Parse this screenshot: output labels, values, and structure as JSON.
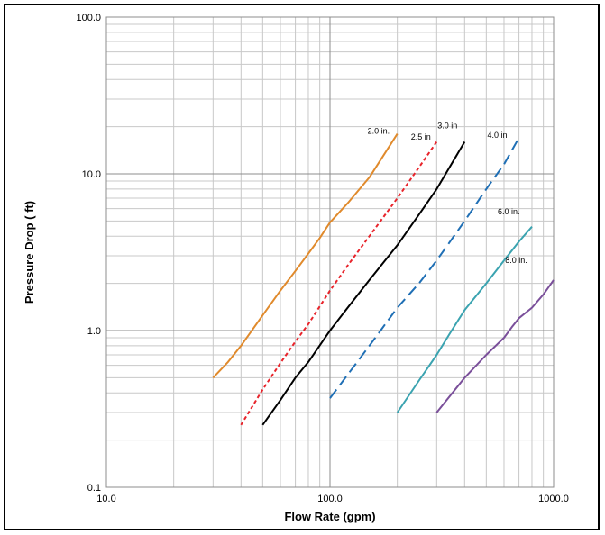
{
  "chart_data": {
    "type": "line",
    "title": "",
    "xlabel": "Flow Rate (gpm)",
    "ylabel": "Pressure Drop ( ft)",
    "xscale": "log",
    "yscale": "log",
    "xlim": [
      10,
      1000
    ],
    "ylim": [
      0.1,
      100
    ],
    "grid": true,
    "x_tick_labels": [
      "10.0",
      "100.0",
      "1000.0"
    ],
    "y_tick_labels": [
      "0.1",
      "1.0",
      "10.0",
      "100.0"
    ],
    "series": [
      {
        "name": "2.0 in.",
        "color": "#e08a2c",
        "dash": "solid",
        "x": [
          30,
          35,
          40,
          50,
          60,
          70,
          80,
          90,
          100,
          120,
          150,
          200
        ],
        "y": [
          0.5,
          0.63,
          0.8,
          1.25,
          1.8,
          2.4,
          3.1,
          3.9,
          4.9,
          6.5,
          9.5,
          18
        ]
      },
      {
        "name": "2.5 in",
        "color": "#e8242b",
        "dash": "short",
        "x": [
          40,
          50,
          60,
          70,
          80,
          100,
          120,
          150,
          200,
          250,
          300
        ],
        "y": [
          0.25,
          0.42,
          0.62,
          0.85,
          1.1,
          1.8,
          2.6,
          4.0,
          7.0,
          11,
          16
        ]
      },
      {
        "name": "3.0 in",
        "color": "#000000",
        "dash": "solid",
        "x": [
          50,
          60,
          70,
          80,
          100,
          120,
          150,
          200,
          250,
          300,
          400
        ],
        "y": [
          0.25,
          0.36,
          0.5,
          0.63,
          1.0,
          1.4,
          2.1,
          3.5,
          5.5,
          8.0,
          16
        ]
      },
      {
        "name": "4.0 in",
        "color": "#1f6fb5",
        "dash": "long",
        "x": [
          100,
          150,
          200,
          250,
          300,
          400,
          500,
          600,
          700
        ],
        "y": [
          0.37,
          0.8,
          1.4,
          2.0,
          2.8,
          5.0,
          8.0,
          11.5,
          17
        ]
      },
      {
        "name": "6.0 in.",
        "color": "#3aa3b0",
        "dash": "solid",
        "x": [
          200,
          250,
          300,
          350,
          400,
          500,
          600,
          700,
          800
        ],
        "y": [
          0.3,
          0.48,
          0.7,
          1.0,
          1.35,
          2.0,
          2.8,
          3.7,
          4.6
        ]
      },
      {
        "name": "8.0 in.",
        "color": "#7a4f9a",
        "dash": "solid",
        "x": [
          300,
          400,
          500,
          600,
          650,
          700,
          800,
          900,
          1000
        ],
        "y": [
          0.3,
          0.5,
          0.7,
          0.9,
          1.05,
          1.2,
          1.4,
          1.7,
          2.1
        ]
      }
    ],
    "series_label_positions_data": [
      {
        "x": 165,
        "y": 18
      },
      {
        "x": 255,
        "y": 16.5
      },
      {
        "x": 335,
        "y": 19.5
      },
      {
        "x": 560,
        "y": 17
      },
      {
        "x": 630,
        "y": 5.5
      },
      {
        "x": 680,
        "y": 2.7
      }
    ]
  }
}
